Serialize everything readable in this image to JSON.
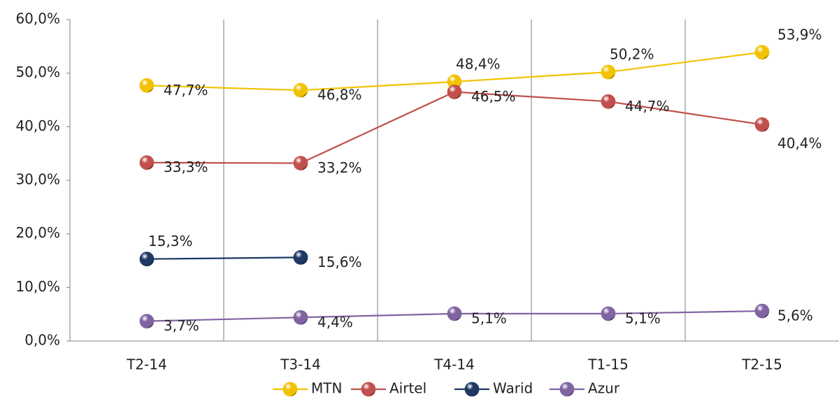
{
  "chart_data": {
    "type": "line",
    "categories": [
      "T2-14",
      "T3-14",
      "T4-14",
      "T1-15",
      "T2-15"
    ],
    "series": [
      {
        "name": "MTN",
        "color": "#f2c200",
        "values": [
          47.7,
          46.8,
          48.4,
          50.2,
          53.9
        ],
        "value_labels": [
          "47,7%",
          "46,8%",
          "48,4%",
          "50,2%",
          "53,9%"
        ]
      },
      {
        "name": "Airtel",
        "color": "#c0504d",
        "values": [
          33.3,
          33.2,
          46.5,
          44.7,
          40.4
        ],
        "value_labels": [
          "33,3%",
          "33,2%",
          "46,5%",
          "44,7%",
          "40,4%"
        ]
      },
      {
        "name": "Warid",
        "color": "#1f3864",
        "values": [
          15.3,
          15.6,
          null,
          null,
          null
        ],
        "value_labels": [
          "15,3%",
          "15,6%",
          null,
          null,
          null
        ]
      },
      {
        "name": "Azur",
        "color": "#8064a2",
        "values": [
          3.7,
          4.4,
          5.1,
          5.1,
          5.6
        ],
        "value_labels": [
          "3,7%",
          "4,4%",
          "5,1%",
          "5,1%",
          "5,6%"
        ]
      }
    ],
    "ylim": [
      0,
      60
    ],
    "yticks": [
      {
        "value": 0,
        "label": "0,0%"
      },
      {
        "value": 10,
        "label": "10,0%"
      },
      {
        "value": 20,
        "label": "20,0%"
      },
      {
        "value": 30,
        "label": "30,0%"
      },
      {
        "value": 40,
        "label": "40,0%"
      },
      {
        "value": 50,
        "label": "50,0%"
      },
      {
        "value": 60,
        "label": "60,0%"
      }
    ],
    "legend": "bottom"
  }
}
